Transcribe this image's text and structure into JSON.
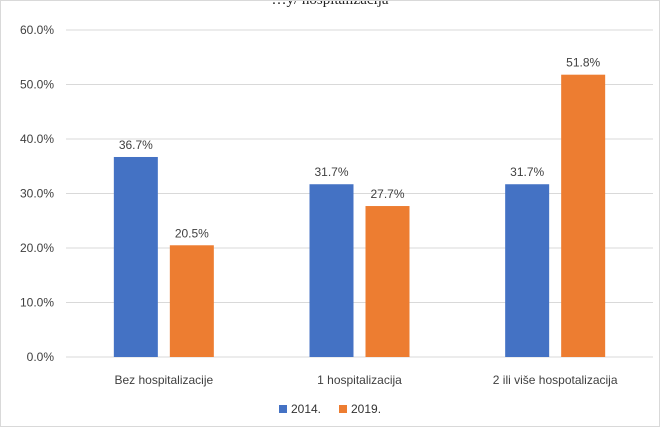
{
  "chart_data": {
    "type": "bar",
    "title": "…y/ hospitalizacija",
    "categories": [
      "Bez hospitalizacije",
      "1 hospitalizacija",
      "2 ili više hospotalizacija"
    ],
    "series": [
      {
        "name": "2014.",
        "color": "#4472C4",
        "values": [
          36.7,
          31.7,
          31.7
        ],
        "labels": [
          "36.7%",
          "31.7%",
          "31.7%"
        ]
      },
      {
        "name": "2019.",
        "color": "#ED7D31",
        "values": [
          20.5,
          27.7,
          51.8
        ],
        "labels": [
          "20.5%",
          "27.7%",
          "51.8%"
        ]
      }
    ],
    "ylim": [
      0,
      60
    ],
    "yticks": [
      "0.0%",
      "10.0%",
      "20.0%",
      "30.0%",
      "40.0%",
      "50.0%",
      "60.0%"
    ],
    "grid": true,
    "legend_position": "bottom"
  }
}
